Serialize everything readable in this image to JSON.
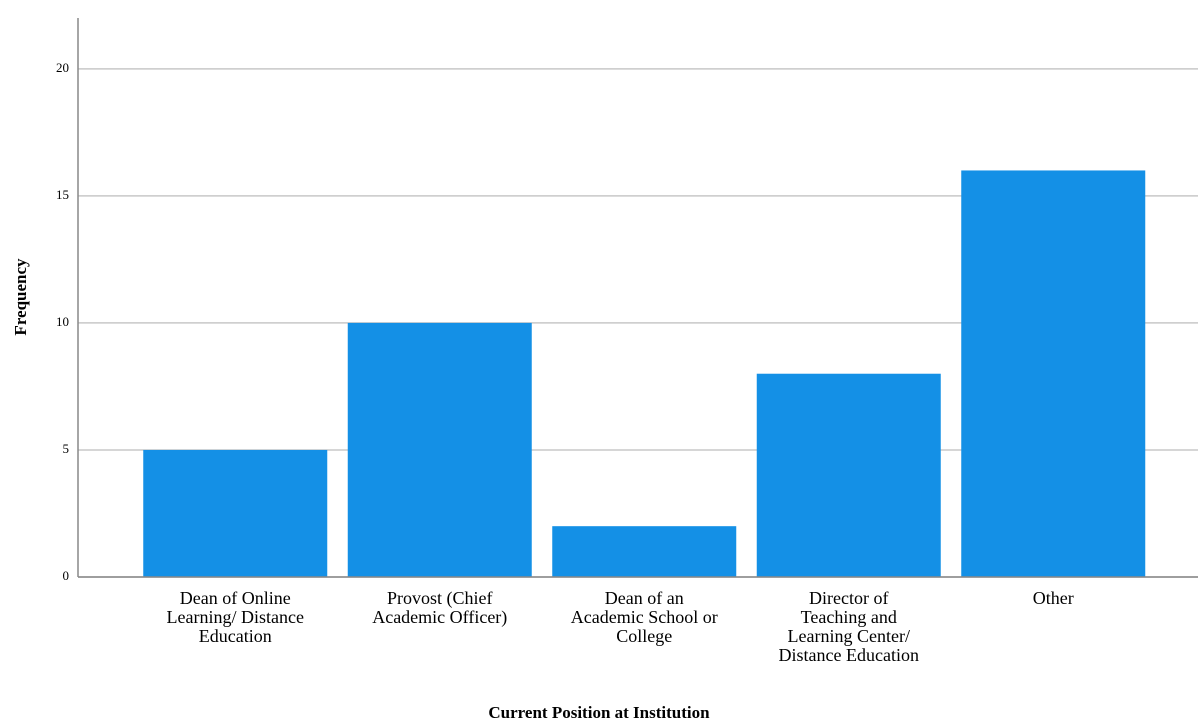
{
  "chart_data": {
    "type": "bar",
    "x_label": "Current Position at Institution",
    "y_label": "Frequency",
    "categories": [
      "Dean of Online\nLearning/ Distance\nEducation",
      "Provost (Chief\nAcademic Officer)",
      "Dean of an\nAcademic School or\nCollege",
      "Director of\nTeaching and\nLearning Center/\nDistance Education",
      "Other"
    ],
    "values": [
      5,
      10,
      2,
      8,
      16
    ],
    "color": "#1490e6",
    "ylim": [
      0,
      22
    ],
    "yticks": [
      0,
      5,
      10,
      15,
      20
    ],
    "grid": true
  }
}
